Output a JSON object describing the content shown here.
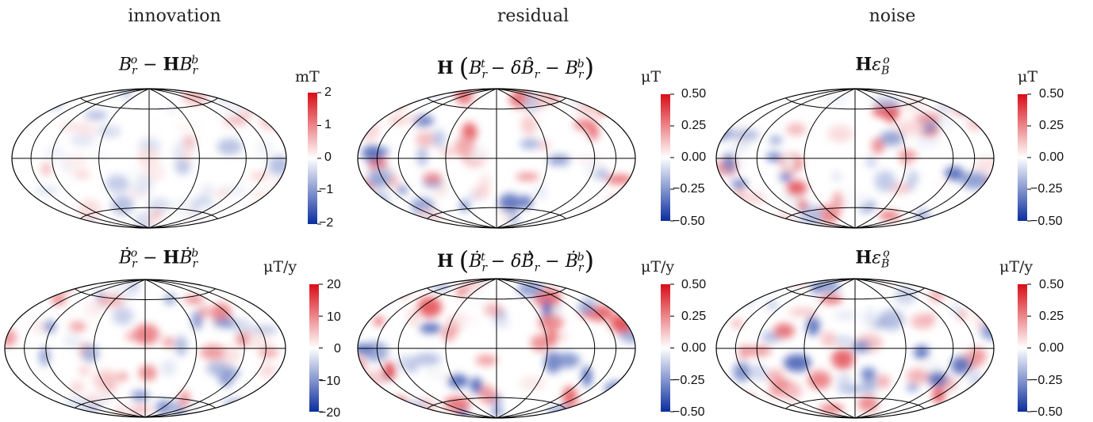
{
  "column_titles": [
    "innovation",
    "residual",
    "noise"
  ],
  "colors": {
    "negative": "#0b2d9e",
    "neutral": "#ffffff",
    "positive": "#d90d17",
    "grid": "#000000"
  },
  "chart_data": [
    {
      "type": "heatmap",
      "projection": "hammer",
      "row": 0,
      "col": 0,
      "title_parts": [
        "B",
        "r",
        "o",
        " − ",
        "H",
        "B",
        "r",
        "b"
      ],
      "unit": "mT",
      "clim": [
        -2,
        2
      ],
      "cbar_ticks": [
        "2",
        "1",
        "0",
        "−1",
        "−2"
      ],
      "seed": 11,
      "amplitude": 0.35
    },
    {
      "type": "heatmap",
      "projection": "hammer",
      "row": 0,
      "col": 1,
      "title_parts": [
        "H",
        "(",
        "B",
        "r",
        "t",
        " − ",
        "δB̂",
        "r",
        " − ",
        "B",
        "r",
        "b",
        ")"
      ],
      "unit": "μT",
      "clim": [
        -0.5,
        0.5
      ],
      "cbar_ticks": [
        "0.50",
        "0.25",
        "0.00",
        "−0.25",
        "−0.50"
      ],
      "seed": 23,
      "amplitude": 0.7
    },
    {
      "type": "heatmap",
      "projection": "hammer",
      "row": 0,
      "col": 2,
      "title_parts": [
        "H",
        "ε",
        "B",
        "o"
      ],
      "unit": "μT",
      "clim": [
        -0.5,
        0.5
      ],
      "cbar_ticks": [
        "0.50",
        "0.25",
        "0.00",
        "−0.25",
        "−0.50"
      ],
      "seed": 37,
      "amplitude": 0.75
    },
    {
      "type": "heatmap",
      "projection": "hammer",
      "row": 1,
      "col": 0,
      "title_parts": [
        "Ḃ",
        "r",
        "o",
        " − ",
        "H",
        "Ḃ",
        "r",
        "b"
      ],
      "unit": "μT/y",
      "clim": [
        -20,
        20
      ],
      "cbar_ticks": [
        "20",
        "10",
        "0",
        "−10",
        "−20"
      ],
      "seed": 51,
      "amplitude": 0.55
    },
    {
      "type": "heatmap",
      "projection": "hammer",
      "row": 1,
      "col": 1,
      "title_parts": [
        "H",
        "(",
        "Ḃ",
        "r",
        "t",
        " − ",
        "δḂ̂",
        "r",
        " − ",
        "Ḃ",
        "r",
        "b",
        ")"
      ],
      "unit": "μT/y",
      "clim": [
        -0.5,
        0.5
      ],
      "cbar_ticks": [
        "0.50",
        "0.25",
        "0.00",
        "−0.25",
        "−0.50"
      ],
      "seed": 67,
      "amplitude": 0.8
    },
    {
      "type": "heatmap",
      "projection": "hammer",
      "row": 1,
      "col": 2,
      "title_parts": [
        "H",
        "ε",
        "Ḃ",
        "o"
      ],
      "unit": "μT/y",
      "clim": [
        -0.5,
        0.5
      ],
      "cbar_ticks": [
        "0.50",
        "0.25",
        "0.00",
        "−0.25",
        "−0.50"
      ],
      "seed": 83,
      "amplitude": 0.75
    }
  ]
}
